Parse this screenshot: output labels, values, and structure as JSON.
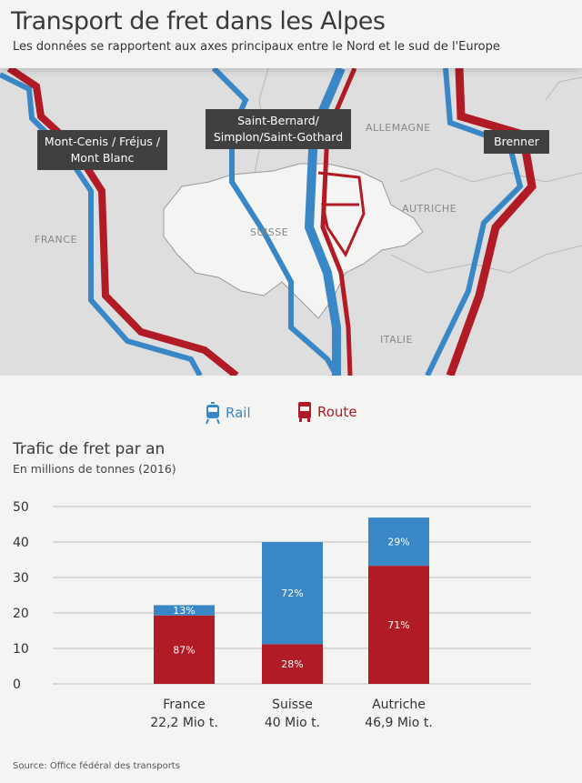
{
  "header": {
    "title": "Transport de fret dans les Alpes",
    "subtitle": "Les données se rapportent aux axes principaux entre le Nord et le sud de l'Europe"
  },
  "map": {
    "route_labels": {
      "west": "Mont-Cenis / Fréjus / Mont Blanc",
      "center": "Saint-Bernard/ Simplon/Saint-Gothard",
      "east": "Brenner"
    },
    "countries": {
      "france": "FRANCE",
      "suisse": "SUISSE",
      "allemagne": "ALLEMAGNE",
      "autriche": "AUTRICHE",
      "italie": "ITALIE"
    }
  },
  "legend": {
    "rail": "Rail",
    "route": "Route",
    "rail_icon": "train-icon",
    "route_icon": "truck-icon"
  },
  "colors": {
    "rail": "#3a87c8",
    "route": "#b01b25"
  },
  "chart_data": {
    "type": "bar",
    "stacked": true,
    "title": "Trafic de fret par an",
    "subtitle": "En millions de tonnes (2016)",
    "categories": [
      "France",
      "Suisse",
      "Autriche"
    ],
    "totals_labels": [
      "22,2 Mio t.",
      "40 Mio t.",
      "46,9 Mio t."
    ],
    "totals": [
      22.2,
      40,
      46.9
    ],
    "series": [
      {
        "name": "Route",
        "values": [
          19.3,
          11.2,
          33.3
        ],
        "labels": [
          "87%",
          "28%",
          "71%"
        ]
      },
      {
        "name": "Rail",
        "values": [
          2.9,
          28.8,
          13.6
        ],
        "labels": [
          "13%",
          "72%",
          "29%"
        ]
      }
    ],
    "ylim": [
      0,
      50
    ],
    "yticks": [
      "0",
      "10",
      "20",
      "30",
      "40",
      "50"
    ],
    "grid": true
  },
  "source": "Source: Office fédéral des transports"
}
